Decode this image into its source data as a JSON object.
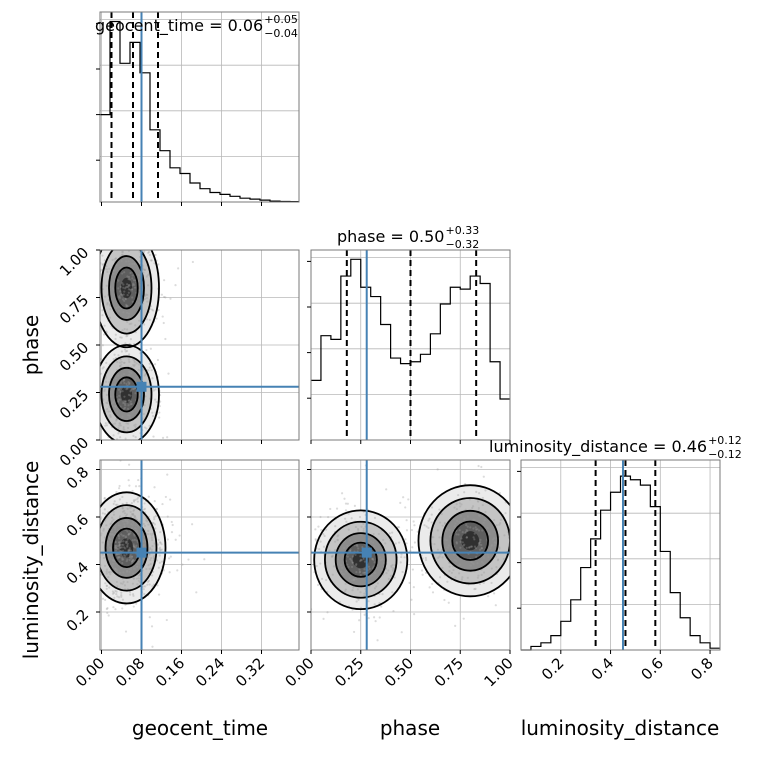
{
  "chart_data": {
    "type": "corner",
    "parameters": [
      "geocent_time",
      "phase",
      "luminosity_distance"
    ],
    "truths": {
      "geocent_time": 0.08,
      "phase": 0.28,
      "luminosity_distance": 0.45
    },
    "titles": [
      {
        "param": "geocent_time",
        "label": "geocent_time = 0.06",
        "median": 0.06,
        "plus": "+0.05",
        "minus": "−0.04"
      },
      {
        "param": "phase",
        "label": "phase = 0.50",
        "median": 0.5,
        "plus": "+0.33",
        "minus": "−0.32"
      },
      {
        "param": "luminosity_distance",
        "label": "luminosity_distance = 0.46",
        "median": 0.46,
        "plus": "+0.12",
        "minus": "−0.12"
      }
    ],
    "axes": {
      "geocent_time": {
        "range": [
          -0.003,
          0.395
        ],
        "ticks": [
          0.0,
          0.08,
          0.16,
          0.24,
          0.32
        ],
        "tick_labels": [
          "0.00",
          "0.08",
          "0.16",
          "0.24",
          "0.32"
        ],
        "xlabel": "geocent_time"
      },
      "phase": {
        "range": [
          0.0,
          1.0
        ],
        "ticks": [
          0.0,
          0.25,
          0.5,
          0.75,
          1.0
        ],
        "tick_labels": [
          "0.00",
          "0.25",
          "0.50",
          "0.75",
          "1.00"
        ],
        "label": "phase"
      },
      "luminosity_distance": {
        "range": [
          0.04,
          0.84
        ],
        "ticks": [
          0.2,
          0.4,
          0.6,
          0.8
        ],
        "tick_labels": [
          "0.2",
          "0.4",
          "0.6",
          "0.8"
        ],
        "label": "luminosity_distance"
      }
    },
    "quantiles": {
      "geocent_time": [
        0.02,
        0.063,
        0.113
      ],
      "phase": [
        0.18,
        0.5,
        0.83
      ],
      "luminosity_distance": [
        0.34,
        0.46,
        0.58
      ]
    },
    "histograms": {
      "geocent_time": {
        "edges": [
          -0.003,
          0.017,
          0.037,
          0.057,
          0.077,
          0.097,
          0.117,
          0.137,
          0.157,
          0.177,
          0.197,
          0.217,
          0.237,
          0.257,
          0.277,
          0.297,
          0.317,
          0.337,
          0.357,
          0.377,
          0.395
        ],
        "counts": [
          0.46,
          0.95,
          0.73,
          0.84,
          0.68,
          0.38,
          0.27,
          0.18,
          0.15,
          0.1,
          0.07,
          0.05,
          0.04,
          0.03,
          0.02,
          0.015,
          0.01,
          0.005,
          0.003,
          0.002
        ]
      },
      "phase": {
        "edges": [
          0.0,
          0.05,
          0.1,
          0.15,
          0.2,
          0.25,
          0.3,
          0.35,
          0.4,
          0.45,
          0.5,
          0.55,
          0.6,
          0.65,
          0.7,
          0.75,
          0.8,
          0.85,
          0.9,
          0.95,
          1.0
        ],
        "counts": [
          0.32,
          0.56,
          0.54,
          0.88,
          0.97,
          0.82,
          0.77,
          0.62,
          0.44,
          0.41,
          0.42,
          0.46,
          0.57,
          0.73,
          0.82,
          0.81,
          0.88,
          0.84,
          0.42,
          0.22
        ]
      },
      "luminosity_distance": {
        "edges": [
          0.04,
          0.08,
          0.12,
          0.16,
          0.2,
          0.24,
          0.28,
          0.32,
          0.36,
          0.4,
          0.44,
          0.48,
          0.52,
          0.56,
          0.6,
          0.64,
          0.68,
          0.72,
          0.76,
          0.8,
          0.84
        ],
        "counts": [
          0.0,
          0.02,
          0.04,
          0.08,
          0.16,
          0.28,
          0.46,
          0.62,
          0.78,
          0.88,
          0.97,
          0.95,
          0.92,
          0.8,
          0.55,
          0.32,
          0.18,
          0.08,
          0.04,
          0.01
        ]
      }
    },
    "posterior_modes": {
      "phase_vs_geocent_time": [
        {
          "x": 0.05,
          "y": 0.8,
          "sx": 0.025,
          "sy": 0.12
        },
        {
          "x": 0.05,
          "y": 0.24,
          "sx": 0.025,
          "sy": 0.1
        }
      ],
      "luminosity_distance_vs_geocent_time": [
        {
          "x": 0.05,
          "y": 0.47,
          "sx": 0.03,
          "sy": 0.09
        }
      ],
      "luminosity_distance_vs_phase": [
        {
          "x": 0.25,
          "y": 0.42,
          "sx": 0.09,
          "sy": 0.08
        },
        {
          "x": 0.8,
          "y": 0.5,
          "sx": 0.1,
          "sy": 0.09
        }
      ]
    }
  }
}
